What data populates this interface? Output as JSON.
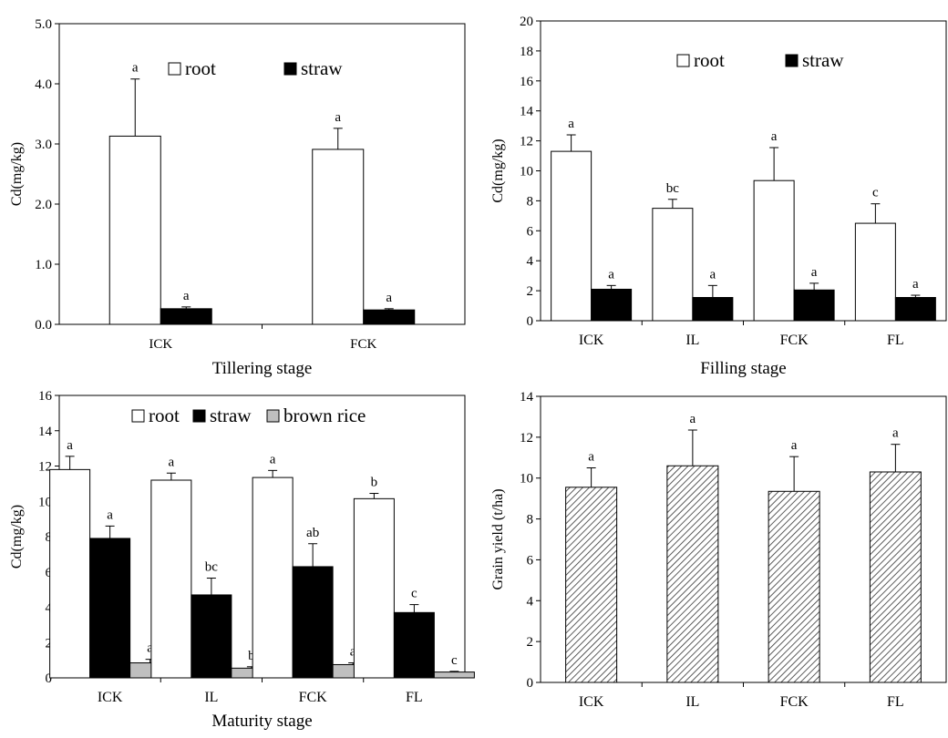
{
  "chart_data": [
    {
      "type": "bar",
      "title": "",
      "xlabel": "Tillering stage",
      "ylabel": "Cd(mg/kg)",
      "ylim": [
        0,
        5
      ],
      "yticks": [
        0,
        1,
        2,
        3,
        4,
        5
      ],
      "ytick_labels": [
        "0.0",
        "1.0",
        "2.0",
        "3.0",
        "4.0",
        "5.0"
      ],
      "categories": [
        "ICK",
        "FCK"
      ],
      "legend": {
        "placement": "top",
        "entries": [
          "root",
          "straw"
        ]
      },
      "series": [
        {
          "name": "root",
          "fill": "white",
          "values": [
            3.13,
            2.91
          ],
          "errors": [
            0.95,
            0.35
          ],
          "labels": [
            "a",
            "a"
          ]
        },
        {
          "name": "straw",
          "fill": "black",
          "values": [
            0.26,
            0.24
          ],
          "errors": [
            0.03,
            0.02
          ],
          "labels": [
            "a",
            "a"
          ]
        }
      ]
    },
    {
      "type": "bar",
      "title": "",
      "xlabel": "Filling stage",
      "ylabel": "Cd(mg/kg)",
      "ylim": [
        0,
        20
      ],
      "yticks": [
        0,
        2,
        4,
        6,
        8,
        10,
        12,
        14,
        16,
        18,
        20
      ],
      "ytick_labels": [
        "0",
        "2",
        "4",
        "6",
        "8",
        "10",
        "12",
        "14",
        "16",
        "18",
        "20"
      ],
      "categories": [
        "ICK",
        "IL",
        "FCK",
        "FL"
      ],
      "legend": {
        "placement": "top",
        "entries": [
          "root",
          "straw"
        ]
      },
      "series": [
        {
          "name": "root",
          "fill": "white",
          "values": [
            11.3,
            7.5,
            9.35,
            6.5
          ],
          "errors": [
            1.1,
            0.6,
            2.2,
            1.3
          ],
          "labels": [
            "a",
            "bc",
            "a",
            "c"
          ]
        },
        {
          "name": "straw",
          "fill": "black",
          "values": [
            2.1,
            1.55,
            2.05,
            1.55
          ],
          "errors": [
            0.25,
            0.8,
            0.45,
            0.15
          ],
          "labels": [
            "a",
            "a",
            "a",
            "a"
          ]
        }
      ]
    },
    {
      "type": "bar",
      "title": "",
      "xlabel": "Maturity stage",
      "ylabel": "Cd(mg/kg)",
      "ylim": [
        0,
        16
      ],
      "yticks": [
        0,
        2,
        4,
        6,
        8,
        10,
        12,
        14,
        16
      ],
      "ytick_labels": [
        "0",
        "2",
        "4",
        "6",
        "8",
        "10",
        "12",
        "14",
        "16"
      ],
      "categories": [
        "ICK",
        "IL",
        "FCK",
        "FL"
      ],
      "legend": {
        "placement": "top",
        "entries": [
          "root",
          "straw",
          "brown rice"
        ]
      },
      "series": [
        {
          "name": "root",
          "fill": "white",
          "values": [
            11.8,
            11.2,
            11.35,
            10.15
          ],
          "errors": [
            0.75,
            0.4,
            0.4,
            0.3
          ],
          "labels": [
            "a",
            "a",
            "a",
            "b"
          ]
        },
        {
          "name": "straw",
          "fill": "black",
          "values": [
            7.9,
            4.7,
            6.3,
            3.7
          ],
          "errors": [
            0.7,
            0.95,
            1.3,
            0.45
          ],
          "labels": [
            "a",
            "bc",
            "ab",
            "c"
          ]
        },
        {
          "name": "brown rice",
          "fill": "gray",
          "values": [
            0.85,
            0.55,
            0.75,
            0.33
          ],
          "errors": [
            0.2,
            0.08,
            0.1,
            0.04
          ],
          "labels": [
            "a",
            "b",
            "a",
            "c"
          ]
        }
      ]
    },
    {
      "type": "bar",
      "title": "",
      "xlabel": "",
      "ylabel": "Grain yield (t/ha)",
      "ylim": [
        0,
        14
      ],
      "yticks": [
        0,
        2,
        4,
        6,
        8,
        10,
        12,
        14
      ],
      "ytick_labels": [
        "0",
        "2",
        "4",
        "6",
        "8",
        "10",
        "12",
        "14"
      ],
      "categories": [
        "ICK",
        "IL",
        "FCK",
        "FL"
      ],
      "legend": null,
      "series": [
        {
          "name": "",
          "fill": "hatch",
          "values": [
            9.55,
            10.6,
            9.35,
            10.3
          ],
          "errors": [
            0.95,
            1.75,
            1.7,
            1.35
          ],
          "labels": [
            "a",
            "a",
            "a",
            "a"
          ]
        }
      ]
    }
  ]
}
